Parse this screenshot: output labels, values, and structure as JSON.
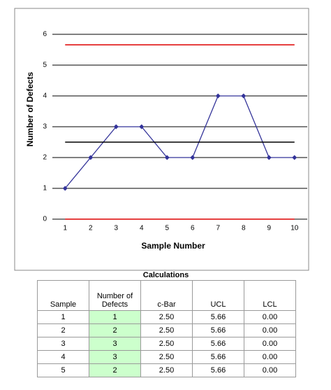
{
  "chart_data": {
    "type": "line",
    "ylabel": "Number of Defects",
    "xlabel": "Sample Number",
    "x": [
      1,
      2,
      3,
      4,
      5,
      6,
      7,
      8,
      9,
      10
    ],
    "xlim": [
      0.5,
      10.5
    ],
    "xticks": [
      1,
      2,
      3,
      4,
      5,
      6,
      7,
      8,
      9,
      10
    ],
    "ylim": [
      0,
      6
    ],
    "yticks": [
      0,
      1,
      2,
      3,
      4,
      5,
      6
    ],
    "grid": true,
    "series": [
      {
        "color": "#333399",
        "markers": true,
        "values": [
          1,
          2,
          3,
          3,
          2,
          2,
          4,
          4,
          2,
          2
        ]
      },
      {
        "color": "#000000",
        "markers": false,
        "values": [
          2.5,
          2.5,
          2.5,
          2.5,
          2.5,
          2.5,
          2.5,
          2.5,
          2.5,
          2.5
        ]
      },
      {
        "color": "#dd0000",
        "markers": false,
        "values": [
          5.66,
          5.66,
          5.66,
          5.66,
          5.66,
          5.66,
          5.66,
          5.66,
          5.66,
          5.66
        ]
      },
      {
        "color": "#dd0000",
        "markers": false,
        "values": [
          0,
          0,
          0,
          0,
          0,
          0,
          0,
          0,
          0,
          0
        ]
      }
    ]
  },
  "table": {
    "title": "Calculations",
    "columns": [
      "Sample",
      "Number of Defects",
      "c-Bar",
      "UCL",
      "LCL"
    ],
    "rows": [
      [
        "1",
        "1",
        "2.50",
        "5.66",
        "0.00"
      ],
      [
        "2",
        "2",
        "2.50",
        "5.66",
        "0.00"
      ],
      [
        "3",
        "3",
        "2.50",
        "5.66",
        "0.00"
      ],
      [
        "4",
        "3",
        "2.50",
        "5.66",
        "0.00"
      ],
      [
        "5",
        "2",
        "2.50",
        "5.66",
        "0.00"
      ]
    ]
  }
}
